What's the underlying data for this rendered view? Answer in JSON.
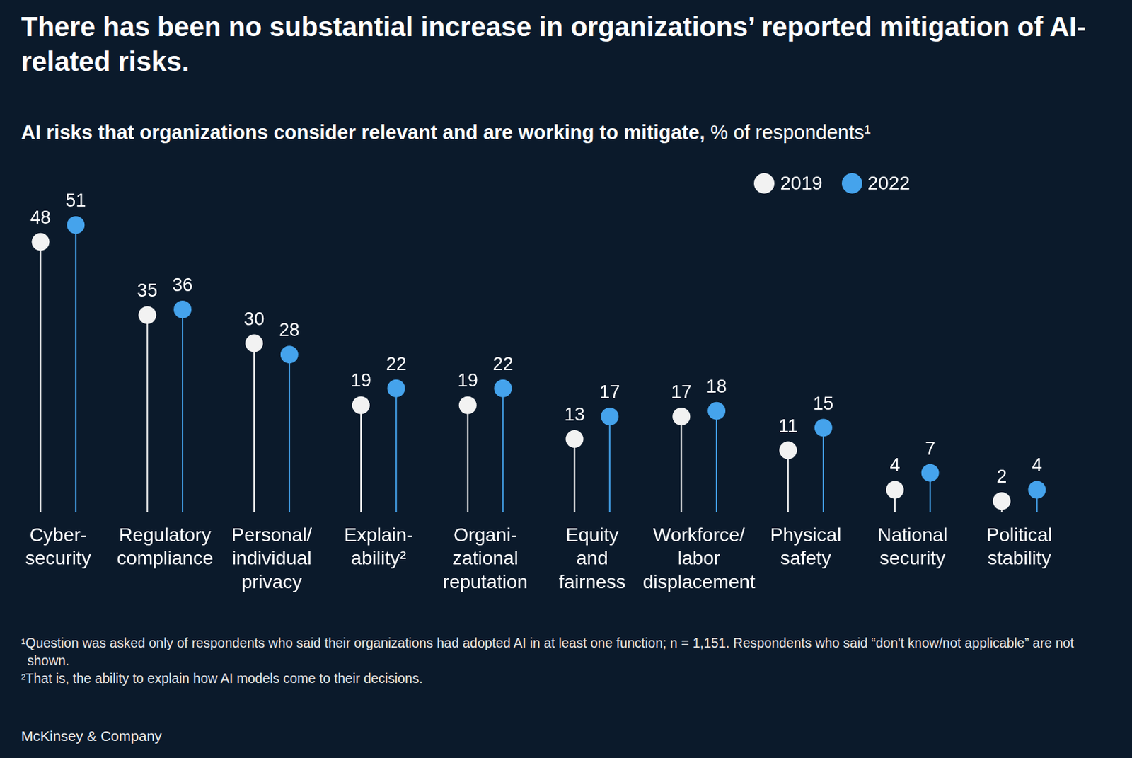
{
  "chart_data": {
    "type": "lollipop",
    "title": "There has been no substantial increase in organizations’ reported mitigation of AI-related risks.",
    "subtitle": "AI risks that organizations consider relevant and are working to mitigate, % of respondents¹",
    "categories": [
      "Cyber-\nsecurity",
      "Regulatory\ncompliance",
      "Personal/\nindividual\nprivacy",
      "Explain-\nability²",
      "Organi-\nzational\nreputation",
      "Equity\nand\nfairness",
      "Workforce/\nlabor\ndisplacement",
      "Physical\nsafety",
      "National\nsecurity",
      "Political\nstability"
    ],
    "series": [
      {
        "name": "2019",
        "color": "#f2f2f2",
        "values": [
          48,
          35,
          30,
          19,
          19,
          13,
          17,
          11,
          4,
          2
        ]
      },
      {
        "name": "2022",
        "color": "#45a3ec",
        "values": [
          51,
          36,
          28,
          22,
          22,
          17,
          18,
          15,
          7,
          4
        ]
      }
    ],
    "ylim": [
      0,
      55
    ],
    "grid": false,
    "legend": "upper right",
    "data_labels": true,
    "tick_labels": "x",
    "notes": [
      "¹Question was asked only of respondents who said their organizations had adopted AI in at least one function; n = 1,151. Respondents who said “don't know/not applicable” are not shown.",
      "²That is, the ability to explain how AI models come to their decisions."
    ],
    "source": "McKinsey & Company"
  }
}
